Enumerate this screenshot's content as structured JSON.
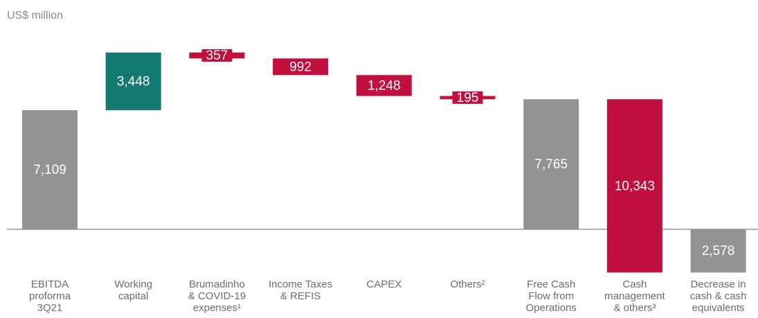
{
  "chart_data": {
    "type": "waterfall",
    "subtitle": "US$ million",
    "categories": [
      "EBITDA\nproforma\n3Q21",
      "Working\ncapital",
      "Brumadinho\n& COVID-19\nexpenses¹",
      "Income Taxes\n& REFIS",
      "CAPEX",
      "Others²",
      "Free Cash\nFlow from\nOperations",
      "Cash\nmanagement\n& others³",
      "Decrease in\ncash & cash\nequivalents"
    ],
    "measures": [
      "absolute",
      "relative",
      "relative",
      "relative",
      "relative",
      "relative",
      "total",
      "relative",
      "total"
    ],
    "values": [
      7109,
      3448,
      -357,
      -992,
      -1248,
      -195,
      7765,
      -10343,
      -2578
    ],
    "value_labels": [
      "7,109",
      "3,448",
      "357",
      "992",
      "1,248",
      "195",
      "7,765",
      "10,343",
      "2,578"
    ],
    "colors": {
      "total": "#939393",
      "increase": "#137a6f",
      "decrease": "#c10f3f"
    }
  }
}
